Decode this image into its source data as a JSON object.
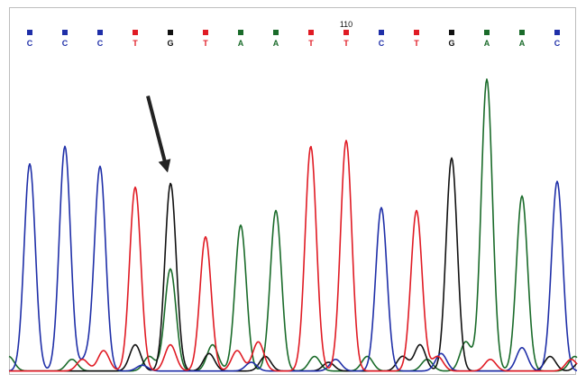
{
  "chart_data": {
    "type": "line",
    "title": "",
    "xlabel": "",
    "ylabel": "",
    "position_marker": {
      "label": "110",
      "base_index": 9
    },
    "sequence": [
      "C",
      "C",
      "C",
      "T",
      "G",
      "T",
      "A",
      "A",
      "T",
      "T",
      "C",
      "T",
      "G",
      "A",
      "A",
      "C"
    ],
    "base_colors": {
      "A": "#1a6b2a",
      "C": "#1f2fa8",
      "G": "#111111",
      "T": "#e01b24"
    },
    "peak_heights": [
      0.71,
      0.77,
      0.7,
      0.63,
      0.61,
      0.46,
      0.5,
      0.55,
      0.72,
      0.79,
      0.56,
      0.55,
      0.73,
      1.0,
      0.6,
      0.65
    ],
    "secondary_peaks": [
      {
        "base": "A",
        "base_index": 4,
        "height": 0.35
      }
    ],
    "annotation": {
      "type": "arrow",
      "target_base_index": 4
    },
    "ylim": [
      0,
      1.05
    ],
    "grid": false
  }
}
